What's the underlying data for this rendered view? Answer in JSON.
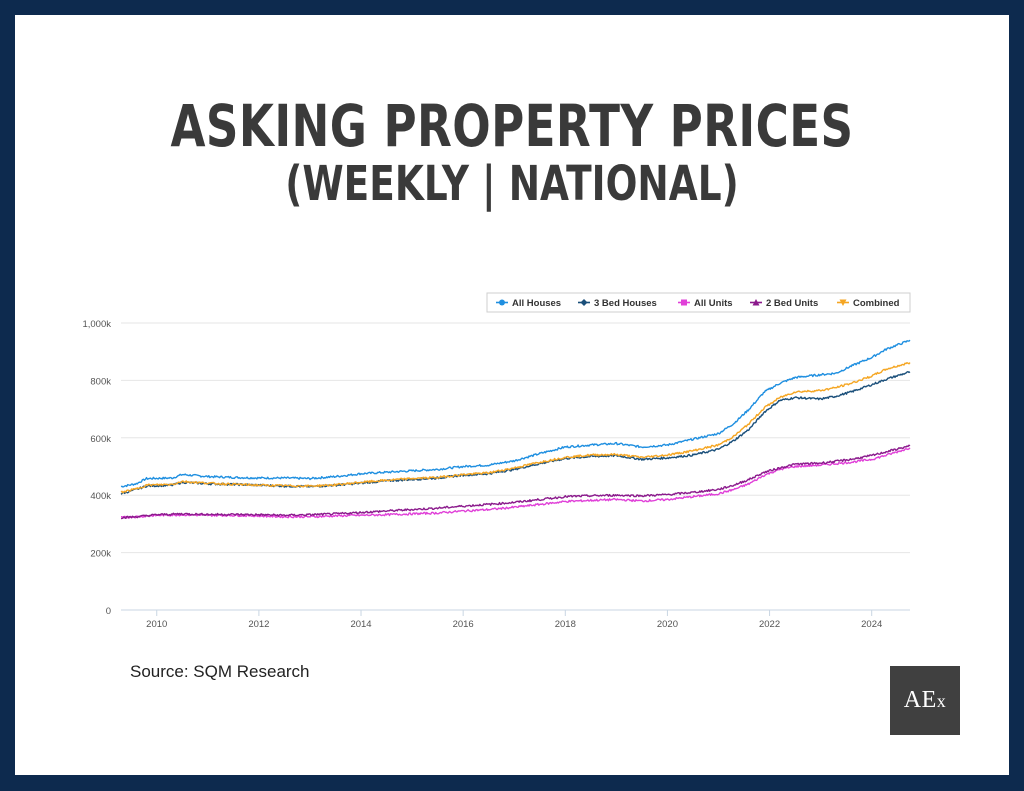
{
  "title": "ASKING PROPERTY PRICES",
  "subtitle": "(WEEKLY | NATIONAL)",
  "source": "Source: SQM Research",
  "logo_text": "AEx",
  "chart_data": {
    "type": "line",
    "title": "ASKING PROPERTY PRICES",
    "subtitle": "(WEEKLY | NATIONAL)",
    "xlabel": "",
    "ylabel": "",
    "x_ticks": [
      "2010",
      "2012",
      "2014",
      "2016",
      "2018",
      "2020",
      "2022",
      "2024"
    ],
    "y_ticks": [
      "0",
      "200k",
      "400k",
      "600k",
      "800k",
      "1,000k"
    ],
    "xlim": [
      2009.3,
      2024.75
    ],
    "ylim": [
      0,
      1000000
    ],
    "grid": "horizontal",
    "legend_position": "top-right",
    "series": [
      {
        "name": "All Houses",
        "color": "#1f8fe0",
        "points": [
          [
            2009.3,
            430000
          ],
          [
            2009.6,
            440000
          ],
          [
            2009.8,
            458000
          ],
          [
            2010.3,
            460000
          ],
          [
            2010.5,
            472000
          ],
          [
            2011.0,
            465000
          ],
          [
            2011.5,
            462000
          ],
          [
            2012.0,
            460000
          ],
          [
            2012.5,
            460000
          ],
          [
            2013.0,
            458000
          ],
          [
            2013.5,
            465000
          ],
          [
            2014.0,
            475000
          ],
          [
            2014.5,
            480000
          ],
          [
            2015.0,
            485000
          ],
          [
            2015.5,
            490000
          ],
          [
            2016.0,
            500000
          ],
          [
            2016.5,
            505000
          ],
          [
            2017.0,
            520000
          ],
          [
            2017.5,
            545000
          ],
          [
            2018.0,
            568000
          ],
          [
            2018.5,
            575000
          ],
          [
            2019.0,
            580000
          ],
          [
            2019.5,
            568000
          ],
          [
            2020.0,
            575000
          ],
          [
            2020.5,
            595000
          ],
          [
            2021.0,
            615000
          ],
          [
            2021.3,
            650000
          ],
          [
            2021.6,
            700000
          ],
          [
            2021.9,
            760000
          ],
          [
            2022.2,
            790000
          ],
          [
            2022.5,
            810000
          ],
          [
            2023.0,
            820000
          ],
          [
            2023.3,
            825000
          ],
          [
            2023.6,
            850000
          ],
          [
            2024.0,
            880000
          ],
          [
            2024.3,
            910000
          ],
          [
            2024.75,
            940000
          ]
        ]
      },
      {
        "name": "3 Bed Houses",
        "color": "#1a4f7a",
        "points": [
          [
            2009.3,
            405000
          ],
          [
            2009.6,
            420000
          ],
          [
            2009.8,
            432000
          ],
          [
            2010.3,
            435000
          ],
          [
            2010.5,
            445000
          ],
          [
            2011.0,
            440000
          ],
          [
            2011.5,
            438000
          ],
          [
            2012.0,
            435000
          ],
          [
            2012.5,
            432000
          ],
          [
            2013.0,
            430000
          ],
          [
            2013.5,
            435000
          ],
          [
            2014.0,
            442000
          ],
          [
            2014.5,
            450000
          ],
          [
            2015.0,
            455000
          ],
          [
            2015.5,
            460000
          ],
          [
            2016.0,
            470000
          ],
          [
            2016.5,
            475000
          ],
          [
            2017.0,
            490000
          ],
          [
            2017.5,
            510000
          ],
          [
            2018.0,
            528000
          ],
          [
            2018.5,
            535000
          ],
          [
            2019.0,
            538000
          ],
          [
            2019.5,
            525000
          ],
          [
            2020.0,
            530000
          ],
          [
            2020.5,
            540000
          ],
          [
            2021.0,
            560000
          ],
          [
            2021.3,
            590000
          ],
          [
            2021.6,
            630000
          ],
          [
            2021.9,
            690000
          ],
          [
            2022.2,
            730000
          ],
          [
            2022.5,
            740000
          ],
          [
            2023.0,
            735000
          ],
          [
            2023.3,
            745000
          ],
          [
            2023.6,
            760000
          ],
          [
            2024.0,
            785000
          ],
          [
            2024.3,
            805000
          ],
          [
            2024.75,
            830000
          ]
        ]
      },
      {
        "name": "All Units",
        "color": "#e040d8",
        "points": [
          [
            2009.3,
            322000
          ],
          [
            2009.6,
            325000
          ],
          [
            2010.0,
            330000
          ],
          [
            2010.5,
            332000
          ],
          [
            2011.0,
            330000
          ],
          [
            2011.5,
            330000
          ],
          [
            2012.0,
            328000
          ],
          [
            2012.5,
            325000
          ],
          [
            2013.0,
            325000
          ],
          [
            2013.5,
            328000
          ],
          [
            2014.0,
            330000
          ],
          [
            2014.5,
            332000
          ],
          [
            2015.0,
            335000
          ],
          [
            2015.5,
            338000
          ],
          [
            2016.0,
            345000
          ],
          [
            2016.5,
            350000
          ],
          [
            2017.0,
            358000
          ],
          [
            2017.5,
            368000
          ],
          [
            2018.0,
            378000
          ],
          [
            2018.5,
            382000
          ],
          [
            2019.0,
            385000
          ],
          [
            2019.5,
            380000
          ],
          [
            2020.0,
            385000
          ],
          [
            2020.5,
            395000
          ],
          [
            2021.0,
            405000
          ],
          [
            2021.3,
            420000
          ],
          [
            2021.6,
            440000
          ],
          [
            2021.9,
            470000
          ],
          [
            2022.2,
            490000
          ],
          [
            2022.5,
            500000
          ],
          [
            2023.0,
            505000
          ],
          [
            2023.3,
            510000
          ],
          [
            2023.6,
            515000
          ],
          [
            2024.0,
            525000
          ],
          [
            2024.3,
            540000
          ],
          [
            2024.75,
            565000
          ]
        ]
      },
      {
        "name": "2 Bed Units",
        "color": "#8b1a8c",
        "points": [
          [
            2009.3,
            322000
          ],
          [
            2009.6,
            325000
          ],
          [
            2010.0,
            332000
          ],
          [
            2010.5,
            335000
          ],
          [
            2011.0,
            333000
          ],
          [
            2011.5,
            333000
          ],
          [
            2012.0,
            332000
          ],
          [
            2012.5,
            330000
          ],
          [
            2013.0,
            332000
          ],
          [
            2013.5,
            335000
          ],
          [
            2014.0,
            340000
          ],
          [
            2014.5,
            345000
          ],
          [
            2015.0,
            350000
          ],
          [
            2015.5,
            355000
          ],
          [
            2016.0,
            362000
          ],
          [
            2016.5,
            368000
          ],
          [
            2017.0,
            375000
          ],
          [
            2017.5,
            385000
          ],
          [
            2018.0,
            395000
          ],
          [
            2018.5,
            398000
          ],
          [
            2019.0,
            400000
          ],
          [
            2019.5,
            398000
          ],
          [
            2020.0,
            402000
          ],
          [
            2020.5,
            410000
          ],
          [
            2021.0,
            420000
          ],
          [
            2021.3,
            435000
          ],
          [
            2021.6,
            455000
          ],
          [
            2021.9,
            480000
          ],
          [
            2022.2,
            495000
          ],
          [
            2022.5,
            508000
          ],
          [
            2023.0,
            512000
          ],
          [
            2023.3,
            518000
          ],
          [
            2023.6,
            525000
          ],
          [
            2024.0,
            538000
          ],
          [
            2024.3,
            552000
          ],
          [
            2024.75,
            572000
          ]
        ]
      },
      {
        "name": "Combined",
        "color": "#f5a623",
        "points": [
          [
            2009.3,
            410000
          ],
          [
            2009.6,
            422000
          ],
          [
            2009.8,
            435000
          ],
          [
            2010.3,
            438000
          ],
          [
            2010.5,
            448000
          ],
          [
            2011.0,
            442000
          ],
          [
            2011.5,
            438000
          ],
          [
            2012.0,
            435000
          ],
          [
            2012.5,
            433000
          ],
          [
            2013.0,
            432000
          ],
          [
            2013.5,
            436000
          ],
          [
            2014.0,
            445000
          ],
          [
            2014.5,
            452000
          ],
          [
            2015.0,
            458000
          ],
          [
            2015.5,
            462000
          ],
          [
            2016.0,
            472000
          ],
          [
            2016.5,
            478000
          ],
          [
            2017.0,
            495000
          ],
          [
            2017.5,
            515000
          ],
          [
            2018.0,
            532000
          ],
          [
            2018.5,
            540000
          ],
          [
            2019.0,
            542000
          ],
          [
            2019.5,
            532000
          ],
          [
            2020.0,
            540000
          ],
          [
            2020.5,
            555000
          ],
          [
            2021.0,
            575000
          ],
          [
            2021.3,
            605000
          ],
          [
            2021.6,
            650000
          ],
          [
            2021.9,
            705000
          ],
          [
            2022.2,
            740000
          ],
          [
            2022.5,
            760000
          ],
          [
            2023.0,
            765000
          ],
          [
            2023.3,
            775000
          ],
          [
            2023.6,
            790000
          ],
          [
            2024.0,
            815000
          ],
          [
            2024.3,
            840000
          ],
          [
            2024.75,
            862000
          ]
        ]
      }
    ]
  }
}
